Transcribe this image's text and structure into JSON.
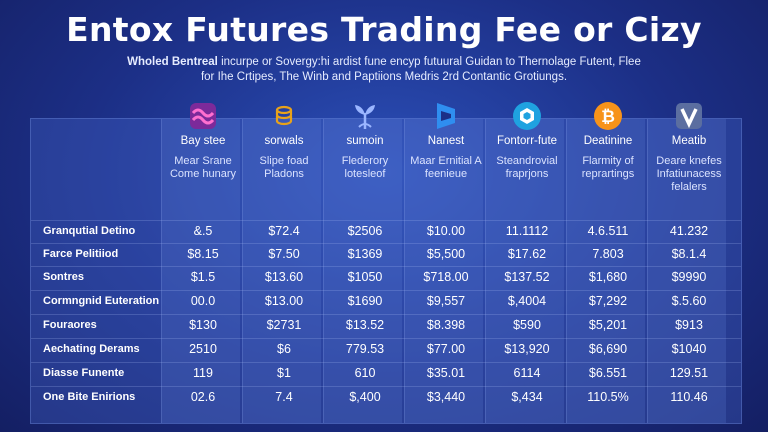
{
  "title": "Entox Futures Trading Fee or Cizy",
  "subtitle": {
    "bold": "Wholed Bentreal",
    "line1_rest": " incurpe or Sovergy:hi ardist fune encyp futuural Guidan to Thernolage Futent,  Flee",
    "line2": "for Ihe Crtipes, The Winb and Paptiions Medris 2rd Contantic Grotiungs."
  },
  "columns": [
    {
      "name": "Bay stee",
      "desc": "Mear Srane Come hunary",
      "icon": "wave-logo-icon"
    },
    {
      "name": "sorwals",
      "desc": "Slipe foad Pladons",
      "icon": "coin-stack-icon"
    },
    {
      "name": "sumoin",
      "desc": "Flederory lotesleof",
      "icon": "sprout-logo-icon"
    },
    {
      "name": "Nanest",
      "desc": "Maar Ernitial A feenieue",
      "icon": "flag-logo-icon"
    },
    {
      "name": "Fontorr-fute",
      "desc": "Steandrovial fraprjons",
      "icon": "hexagon-logo-icon"
    },
    {
      "name": "Deatinine",
      "desc": "Flarmity of reprartings",
      "icon": "bitcoin-icon"
    },
    {
      "name": "Meatib",
      "desc": "Deare knefes Infatiunacess felalers",
      "icon": "v-shield-icon"
    }
  ],
  "rows": [
    {
      "label": "Granqutial Detino",
      "values": [
        "&.5",
        "$72.4",
        "$2506",
        "$10.00",
        "11.1112",
        "4.6.511",
        "41.232"
      ]
    },
    {
      "label": "Farce Pelitiiod",
      "values": [
        "$8.15",
        "$7.50",
        "$1369",
        "$5,500",
        "$17.62",
        "7.803",
        "$8.1.4"
      ]
    },
    {
      "label": "Sontres",
      "values": [
        "$1.5",
        "$13.60",
        "$1050",
        "$718.00",
        "$137.52",
        "$1,680",
        "$9990"
      ]
    },
    {
      "label": "Cormngnid Euteration",
      "values": [
        "00.0",
        "$13.00",
        "$1690",
        "$9,557",
        "$,4004",
        "$7,292",
        "$.5.60"
      ]
    },
    {
      "label": "Fouraores",
      "values": [
        "$130",
        "$2731",
        "$13.52",
        "$8.398",
        "$590",
        "$5,201",
        "$913"
      ]
    },
    {
      "label": "Aechating Derams",
      "values": [
        "2510",
        "$6",
        "779.53",
        "$77.00",
        "$13,920",
        "$6,690",
        "$1040"
      ]
    },
    {
      "label": "Diasse Funente",
      "values": [
        "119",
        "$1",
        "610",
        "$35.01",
        "6114",
        "$6.551",
        "129.51"
      ]
    },
    {
      "label": "One Bite Enirions",
      "values": [
        "02.6",
        "7.4",
        "$,400",
        "$3,440",
        "$,434",
        "110.5%",
        "110.46"
      ]
    }
  ],
  "colors": {
    "background": "#1c2f86",
    "bitcoin": "#f7931a",
    "hexagon": "#1fa2e0",
    "wave": "#c13ea8",
    "coin": "#e8a21a",
    "flag": "#2f8ef0",
    "vshield": "#5b6ea0"
  }
}
